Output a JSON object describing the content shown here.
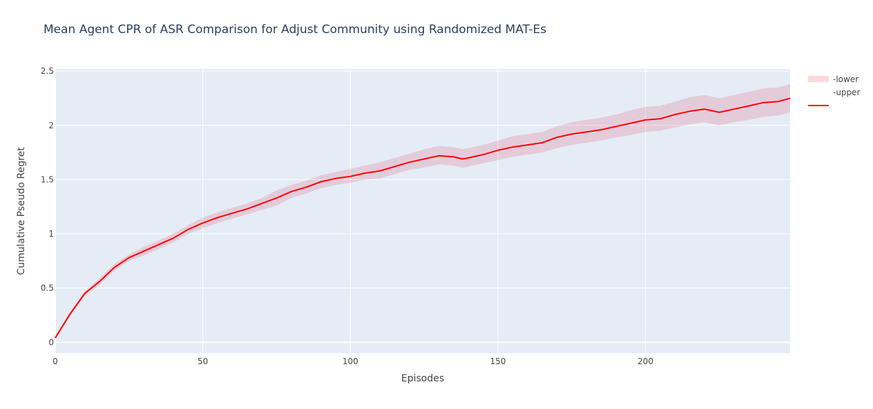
{
  "title": "Mean Agent CPR of ASR Comparison for Adjust Community using Randomized MAT-Es",
  "colors": {
    "plot_bg": "#E5ECF6",
    "grid": "#ffffff",
    "line": "#ff0000",
    "band": "rgba(220,20,60,0.15)",
    "legend_band": "rgba(255,0,0,0.15)"
  },
  "legend": {
    "position": "top-right",
    "items": [
      {
        "label": "-lower",
        "symbol": "band"
      },
      {
        "label": "-upper",
        "symbol": "none"
      },
      {
        "label": "",
        "symbol": "line"
      }
    ]
  },
  "chart_data": {
    "type": "line",
    "title": "Mean Agent CPR of ASR Comparison for Adjust Community using Randomized MAT-Es",
    "xlabel": "Episodes",
    "ylabel": "Cumulative Pseudo Regret",
    "xlim": [
      0,
      249
    ],
    "ylim": [
      -0.1,
      2.52
    ],
    "x_ticks": [
      0,
      50,
      100,
      150,
      200
    ],
    "x_tick_labels": [
      "0",
      "50",
      "100",
      "150",
      "200"
    ],
    "y_ticks": [
      0,
      0.5,
      1,
      1.5,
      2,
      2.5
    ],
    "y_tick_labels": [
      "0",
      "0.5",
      "1",
      "1.5",
      "2",
      "2.5"
    ],
    "grid": true,
    "series": [
      {
        "name": "",
        "role": "mean",
        "x": [
          0,
          5,
          10,
          15,
          20,
          25,
          30,
          35,
          40,
          45,
          50,
          55,
          60,
          65,
          70,
          75,
          80,
          85,
          90,
          95,
          100,
          105,
          110,
          115,
          120,
          125,
          130,
          135,
          138,
          140,
          145,
          150,
          155,
          160,
          165,
          170,
          175,
          180,
          185,
          190,
          195,
          200,
          205,
          210,
          215,
          220,
          225,
          230,
          235,
          240,
          245,
          249
        ],
        "y": [
          0.04,
          0.26,
          0.45,
          0.56,
          0.69,
          0.78,
          0.84,
          0.9,
          0.96,
          1.04,
          1.1,
          1.15,
          1.19,
          1.23,
          1.28,
          1.33,
          1.39,
          1.43,
          1.48,
          1.51,
          1.53,
          1.56,
          1.58,
          1.62,
          1.66,
          1.69,
          1.72,
          1.71,
          1.69,
          1.7,
          1.73,
          1.77,
          1.8,
          1.82,
          1.84,
          1.89,
          1.92,
          1.94,
          1.96,
          1.99,
          2.02,
          2.05,
          2.06,
          2.1,
          2.13,
          2.15,
          2.12,
          2.15,
          2.18,
          2.21,
          2.22,
          2.25
        ]
      },
      {
        "name": "-lower",
        "role": "lower",
        "x": [
          0,
          5,
          10,
          15,
          20,
          25,
          30,
          35,
          40,
          45,
          50,
          55,
          60,
          65,
          70,
          75,
          80,
          85,
          90,
          95,
          100,
          105,
          110,
          115,
          120,
          125,
          130,
          135,
          138,
          140,
          145,
          150,
          155,
          160,
          165,
          170,
          175,
          180,
          185,
          190,
          195,
          200,
          205,
          210,
          215,
          220,
          225,
          230,
          235,
          240,
          245,
          249
        ],
        "y": [
          0.03,
          0.24,
          0.43,
          0.53,
          0.66,
          0.75,
          0.8,
          0.86,
          0.92,
          1.0,
          1.05,
          1.1,
          1.14,
          1.18,
          1.22,
          1.26,
          1.33,
          1.37,
          1.42,
          1.45,
          1.47,
          1.5,
          1.51,
          1.55,
          1.59,
          1.61,
          1.64,
          1.63,
          1.61,
          1.62,
          1.65,
          1.68,
          1.71,
          1.73,
          1.75,
          1.79,
          1.82,
          1.84,
          1.86,
          1.89,
          1.91,
          1.94,
          1.95,
          1.98,
          2.01,
          2.03,
          2.0,
          2.03,
          2.05,
          2.08,
          2.09,
          2.12
        ]
      },
      {
        "name": "-upper",
        "role": "upper",
        "x": [
          0,
          5,
          10,
          15,
          20,
          25,
          30,
          35,
          40,
          45,
          50,
          55,
          60,
          65,
          70,
          75,
          80,
          85,
          90,
          95,
          100,
          105,
          110,
          115,
          120,
          125,
          130,
          135,
          138,
          140,
          145,
          150,
          155,
          160,
          165,
          170,
          175,
          180,
          185,
          190,
          195,
          200,
          205,
          210,
          215,
          220,
          225,
          230,
          235,
          240,
          245,
          249
        ],
        "y": [
          0.06,
          0.28,
          0.47,
          0.59,
          0.72,
          0.81,
          0.88,
          0.94,
          1.0,
          1.08,
          1.15,
          1.2,
          1.24,
          1.28,
          1.33,
          1.4,
          1.45,
          1.49,
          1.54,
          1.57,
          1.6,
          1.63,
          1.66,
          1.7,
          1.74,
          1.78,
          1.81,
          1.8,
          1.78,
          1.79,
          1.82,
          1.86,
          1.9,
          1.92,
          1.94,
          1.99,
          2.03,
          2.05,
          2.07,
          2.1,
          2.14,
          2.17,
          2.18,
          2.22,
          2.26,
          2.28,
          2.25,
          2.28,
          2.31,
          2.34,
          2.35,
          2.38
        ]
      }
    ]
  }
}
